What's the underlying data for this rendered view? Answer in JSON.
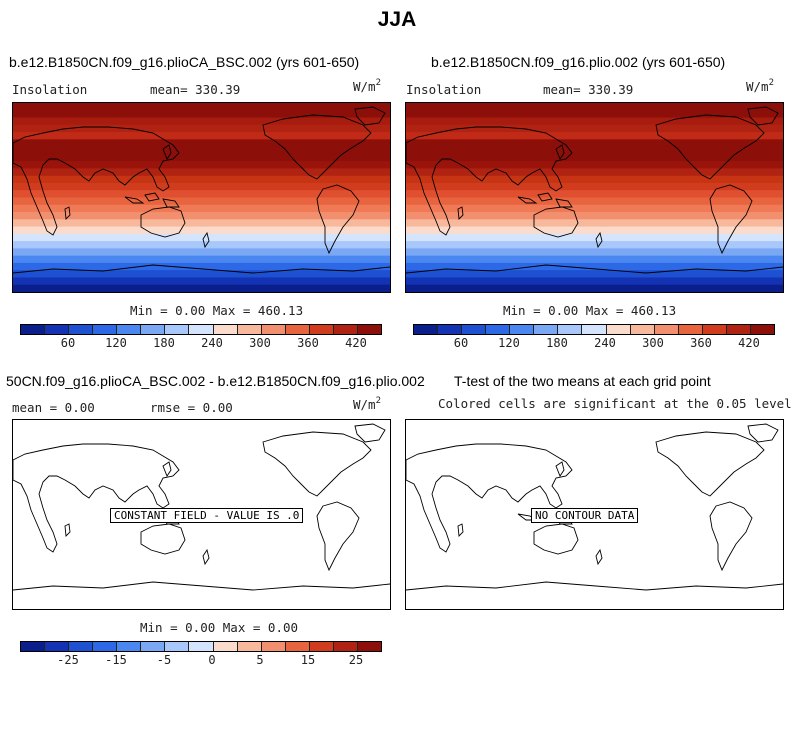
{
  "title": "JJA",
  "panels": {
    "top_left": {
      "title": "b.e12.B1850CN.f09_g16.plioCA_BSC.002 (yrs 601-650)",
      "left_label": "Insolation",
      "center_label": "mean= 330.39",
      "units": "W/m",
      "units_exp": "2",
      "minmax": "Min =   0.00 Max = 460.13"
    },
    "top_right": {
      "title": "b.e12.B1850CN.f09_g16.plio.002 (yrs 601-650)",
      "left_label": "Insolation",
      "center_label": "mean= 330.39",
      "units": "W/m",
      "units_exp": "2",
      "minmax": "Min =   0.00 Max = 460.13"
    },
    "bottom_left": {
      "title": "50CN.f09_g16.plioCA_BSC.002 - b.e12.B1850CN.f09_g16.plio.002",
      "left_label": "mean =   0.00",
      "center_label": "rmse =   0.00",
      "units": "W/m",
      "units_exp": "2",
      "message": "CONSTANT FIELD - VALUE IS .0",
      "minmax": "Min =   0.00 Max =   0.00"
    },
    "bottom_right": {
      "title": "T-test of the two means at each grid point",
      "subtitle": "Colored cells are significant at the 0.05 level",
      "message": "NO CONTOUR DATA"
    }
  },
  "colorbars": {
    "colors": [
      "#0a1e8c",
      "#1432b4",
      "#1e50d2",
      "#2d69e6",
      "#4b87f0",
      "#7aa8f5",
      "#a8c7fa",
      "#d4e4fc",
      "#fbdccc",
      "#f8b89c",
      "#f28f6e",
      "#e8643f",
      "#d13c1e",
      "#b02212",
      "#8c0f0a"
    ],
    "insolation_ticks": [
      "60",
      "120",
      "180",
      "240",
      "300",
      "360",
      "420"
    ],
    "diff_ticks": [
      "-25",
      "-15",
      "-5",
      "0",
      "5",
      "15",
      "25"
    ]
  },
  "insolation_bands": [
    "#8c0f0a",
    "#8c0f0a",
    "#a81c10",
    "#b02212",
    "#c02a16",
    "#8c0f0a",
    "#8c0f0a",
    "#8c0f0a",
    "#9a140c",
    "#b02212",
    "#c63414",
    "#d13c1e",
    "#e05030",
    "#e8643f",
    "#f07a55",
    "#f28f6e",
    "#f8b89c",
    "#fbdccc",
    "#d4e4fc",
    "#a8c7fa",
    "#7aa8f5",
    "#4b87f0",
    "#2d69e6",
    "#1e50d2",
    "#1432b4",
    "#0a1e8c"
  ]
}
